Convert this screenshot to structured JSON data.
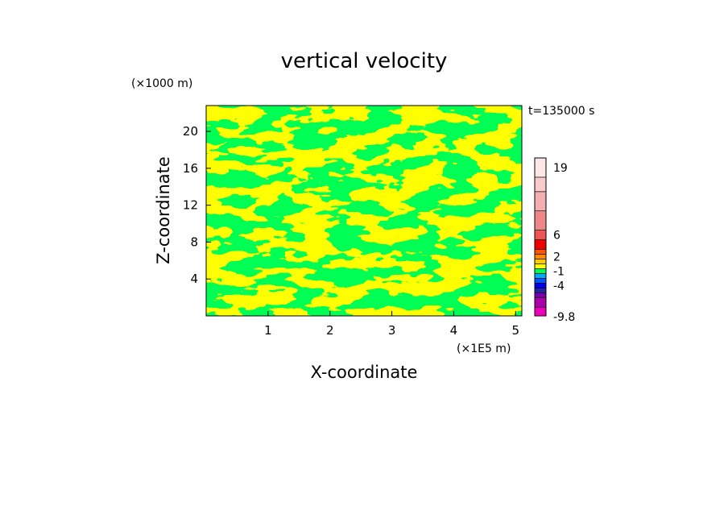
{
  "chart_data": {
    "type": "heatmap",
    "title": "vertical velocity",
    "xlabel": "X-coordinate",
    "ylabel": "Z-coordinate",
    "x_unit": "(×1E5 m)",
    "y_unit": "(×1000 m)",
    "time_label": "t=135000 s",
    "xlim": [
      0,
      5.1
    ],
    "ylim": [
      0,
      22.8
    ],
    "x_ticks": [
      1,
      2,
      3,
      4,
      5
    ],
    "y_ticks": [
      4,
      8,
      12,
      16,
      20
    ],
    "colorbar": {
      "levels": [
        {
          "value": -9.8,
          "color": "#ee00bb"
        },
        {
          "value": -8,
          "color": "#aa00aa"
        },
        {
          "value": -6,
          "color": "#7700aa"
        },
        {
          "value": -5,
          "color": "#2222aa"
        },
        {
          "value": -4,
          "color": "#0000ee"
        },
        {
          "value": -3,
          "color": "#0055ff"
        },
        {
          "value": -2,
          "color": "#00aaff"
        },
        {
          "value": -1,
          "color": "#00ff55"
        },
        {
          "value": 0,
          "color": "#ffff00"
        },
        {
          "value": 1,
          "color": "#ffcc00"
        },
        {
          "value": 2,
          "color": "#ff8800"
        },
        {
          "value": 3,
          "color": "#ff5500"
        },
        {
          "value": 4,
          "color": "#ee0000"
        },
        {
          "value": 6,
          "color": "#ee5555"
        },
        {
          "value": 8,
          "color": "#ee8888"
        },
        {
          "value": 12,
          "color": "#f4b0b0"
        },
        {
          "value": 16,
          "color": "#f8cccc"
        },
        {
          "value": 19,
          "color": "#fce6e6"
        }
      ],
      "tick_labels": [
        "19",
        "6",
        "2",
        "-1",
        "-4",
        "-9.8"
      ]
    },
    "field_colors": {
      "negative": "#00ff55",
      "positive": "#ffff00"
    }
  }
}
